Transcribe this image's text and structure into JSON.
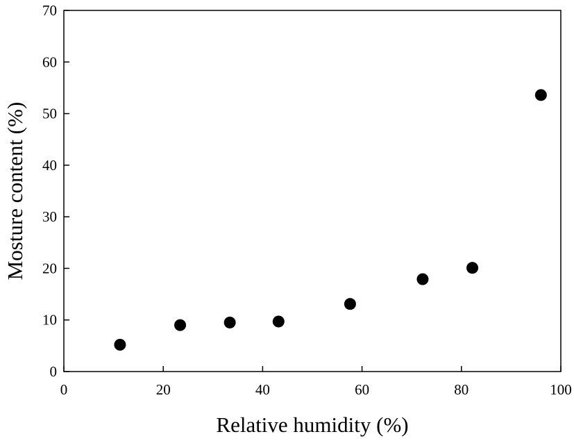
{
  "chart_data": {
    "type": "scatter",
    "xlabel": "Relative humidity (%)",
    "ylabel": "Mosture content (%)",
    "xlim": [
      0,
      100
    ],
    "ylim": [
      0,
      70
    ],
    "xticks": [
      "0",
      "20",
      "40",
      "60",
      "80",
      "100"
    ],
    "yticks": [
      "0",
      "10",
      "20",
      "30",
      "40",
      "50",
      "60",
      "70"
    ],
    "grid": false,
    "series": [
      {
        "marker_color": "#000000",
        "points": [
          {
            "x": 11.3,
            "y": 5.2
          },
          {
            "x": 23.4,
            "y": 9.0
          },
          {
            "x": 33.4,
            "y": 9.5
          },
          {
            "x": 43.2,
            "y": 9.7
          },
          {
            "x": 57.6,
            "y": 13.1
          },
          {
            "x": 72.2,
            "y": 17.9
          },
          {
            "x": 82.2,
            "y": 20.1
          },
          {
            "x": 96.0,
            "y": 53.6
          }
        ]
      }
    ]
  }
}
